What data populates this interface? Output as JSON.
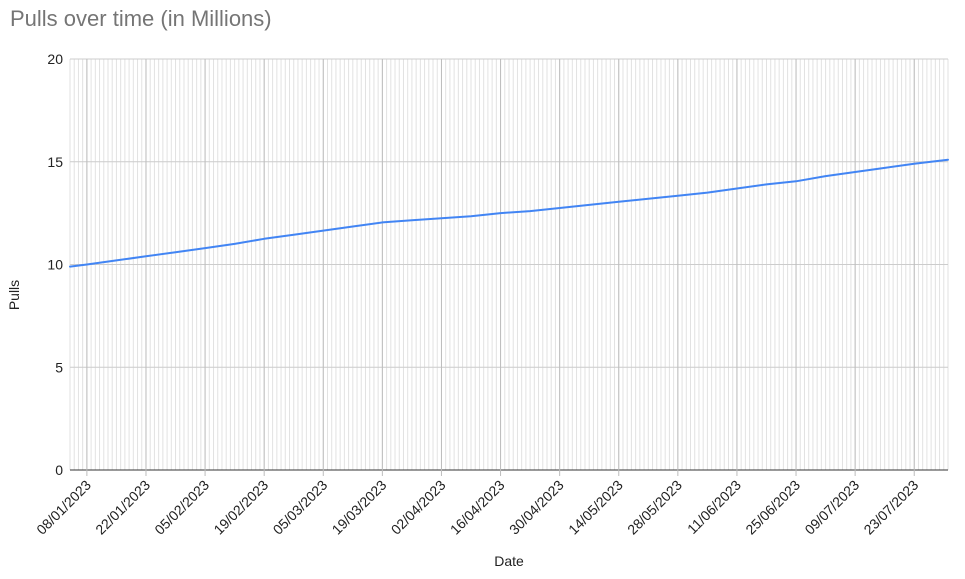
{
  "chart_data": {
    "type": "line",
    "title": "Pulls over time (in Millions)",
    "xlabel": "Date",
    "ylabel": "Pulls",
    "ylim": [
      0,
      20
    ],
    "yticks": [
      0,
      5,
      10,
      15,
      20
    ],
    "xlim": [
      "2023-01-04",
      "2023-07-31"
    ],
    "x_tick_labels": [
      "08/01/2023",
      "22/01/2023",
      "05/02/2023",
      "19/02/2023",
      "05/03/2023",
      "19/03/2023",
      "02/04/2023",
      "16/04/2023",
      "30/04/2023",
      "14/05/2023",
      "28/05/2023",
      "11/06/2023",
      "25/06/2023",
      "09/07/2023",
      "23/07/2023"
    ],
    "x_ticks": [
      "2023-01-08",
      "2023-01-22",
      "2023-02-05",
      "2023-02-19",
      "2023-03-05",
      "2023-03-19",
      "2023-04-02",
      "2023-04-16",
      "2023-04-30",
      "2023-05-14",
      "2023-05-28",
      "2023-06-11",
      "2023-06-25",
      "2023-07-09",
      "2023-07-23"
    ],
    "grid": true,
    "legend": "none",
    "series": [
      {
        "color": "#4285f4",
        "x": [
          "2023-01-04",
          "2023-01-08",
          "2023-01-15",
          "2023-01-22",
          "2023-01-29",
          "2023-02-05",
          "2023-02-12",
          "2023-02-19",
          "2023-02-26",
          "2023-03-05",
          "2023-03-12",
          "2023-03-19",
          "2023-03-26",
          "2023-04-02",
          "2023-04-09",
          "2023-04-16",
          "2023-04-23",
          "2023-04-30",
          "2023-05-07",
          "2023-05-14",
          "2023-05-21",
          "2023-05-28",
          "2023-06-04",
          "2023-06-11",
          "2023-06-18",
          "2023-06-25",
          "2023-07-02",
          "2023-07-09",
          "2023-07-16",
          "2023-07-23",
          "2023-07-31"
        ],
        "values": [
          9.9,
          10.0,
          10.2,
          10.4,
          10.6,
          10.8,
          11.0,
          11.25,
          11.45,
          11.65,
          11.85,
          12.05,
          12.15,
          12.25,
          12.35,
          12.5,
          12.6,
          12.75,
          12.9,
          13.05,
          13.2,
          13.35,
          13.5,
          13.7,
          13.9,
          14.05,
          14.3,
          14.5,
          14.7,
          14.9,
          15.1
        ]
      }
    ]
  }
}
